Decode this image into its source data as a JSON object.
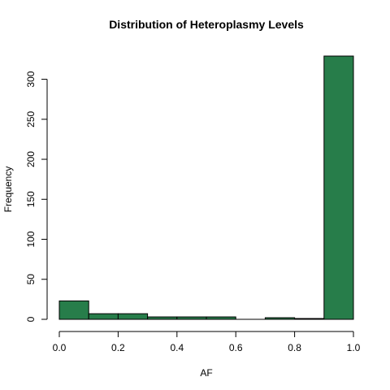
{
  "chart_data": {
    "type": "bar",
    "title": "Distribution of Heteroplasmy Levels",
    "xlabel": "AF",
    "ylabel": "Frequency",
    "bins": [
      [
        0.0,
        0.1
      ],
      [
        0.1,
        0.2
      ],
      [
        0.2,
        0.3
      ],
      [
        0.3,
        0.4
      ],
      [
        0.4,
        0.5
      ],
      [
        0.5,
        0.6
      ],
      [
        0.6,
        0.7
      ],
      [
        0.7,
        0.8
      ],
      [
        0.8,
        0.9
      ],
      [
        0.9,
        1.0
      ]
    ],
    "values": [
      23,
      7,
      7,
      3,
      3,
      3,
      0,
      2,
      1,
      329
    ],
    "xlim": [
      0.0,
      1.0
    ],
    "ylim": [
      0,
      330
    ],
    "x_ticks": [
      "0.0",
      "0.2",
      "0.4",
      "0.6",
      "0.8",
      "1.0"
    ],
    "y_ticks": [
      "0",
      "50",
      "100",
      "150",
      "200",
      "250",
      "300"
    ],
    "bar_color": "#277D4A"
  }
}
